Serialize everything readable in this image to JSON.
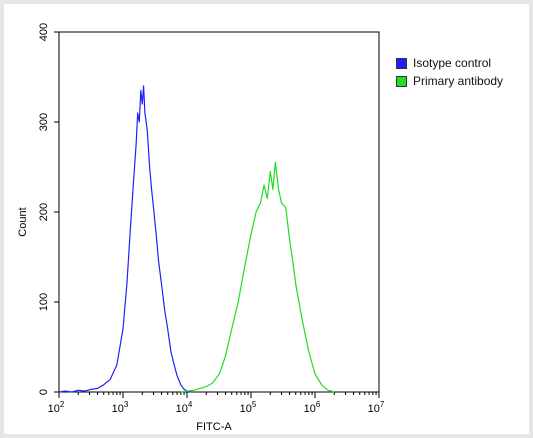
{
  "chart_data": {
    "type": "line",
    "title": "",
    "xlabel": "FITC-A",
    "ylabel": "Count",
    "xscale": "log",
    "xlim": [
      100,
      10000000
    ],
    "ylim": [
      0,
      400
    ],
    "x_ticks": [
      {
        "base": "10",
        "exp": "2"
      },
      {
        "base": "10",
        "exp": "3"
      },
      {
        "base": "10",
        "exp": "4"
      },
      {
        "base": "10",
        "exp": "5"
      },
      {
        "base": "10",
        "exp": "6"
      },
      {
        "base": "10",
        "exp": "7"
      }
    ],
    "y_ticks": [
      "0",
      "100",
      "200",
      "300",
      "400"
    ],
    "legend_position": "top-right, outside plot",
    "grid": false,
    "series": [
      {
        "name": "Isotype control",
        "color": "#2020ff",
        "x": [
          100,
          125,
          160,
          200,
          250,
          320,
          400,
          500,
          630,
          800,
          1000,
          1150,
          1300,
          1450,
          1600,
          1700,
          1800,
          1900,
          2000,
          2100,
          2200,
          2300,
          2400,
          2600,
          2800,
          3000,
          3300,
          3600,
          4000,
          4500,
          5000,
          5600,
          6300,
          7000,
          8000,
          9000,
          10000,
          12000
        ],
        "y": [
          0,
          1,
          0,
          2,
          1,
          3,
          4,
          8,
          14,
          30,
          70,
          120,
          180,
          230,
          275,
          310,
          300,
          335,
          320,
          340,
          310,
          300,
          290,
          250,
          225,
          205,
          175,
          145,
          120,
          90,
          70,
          45,
          30,
          18,
          8,
          3,
          1,
          0
        ]
      },
      {
        "name": "Primary antibody",
        "color": "#22dd22",
        "x": [
          8000,
          10000,
          13000,
          16000,
          20000,
          25000,
          32000,
          40000,
          50000,
          63000,
          80000,
          100000,
          120000,
          140000,
          160000,
          180000,
          200000,
          220000,
          240000,
          270000,
          300000,
          350000,
          400000,
          450000,
          500000,
          630000,
          800000,
          1000000,
          1300000,
          1600000,
          2000000
        ],
        "y": [
          0,
          1,
          2,
          4,
          6,
          10,
          20,
          40,
          70,
          100,
          140,
          175,
          200,
          210,
          230,
          215,
          245,
          225,
          255,
          225,
          210,
          205,
          170,
          145,
          120,
          80,
          45,
          20,
          7,
          2,
          0
        ]
      }
    ]
  }
}
